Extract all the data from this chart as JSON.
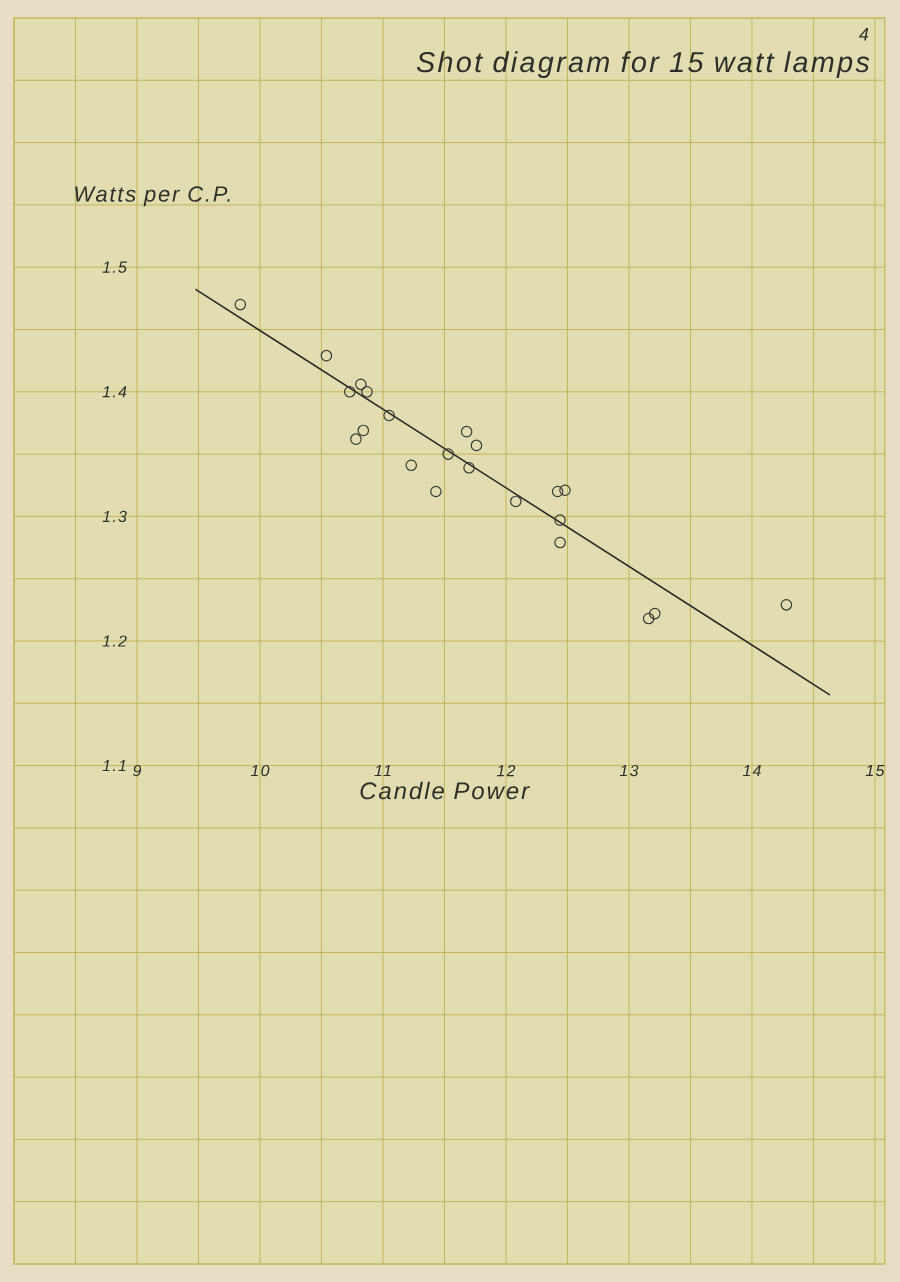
{
  "chart_data": {
    "type": "scatter",
    "title": "Shot diagram for 15 watt lamps",
    "xlabel": "Candle Power",
    "ylabel": "Watts per C.P.",
    "annotations": [
      "4"
    ],
    "xlim": [
      8,
      15.08
    ],
    "ylim": [
      0.7,
      1.7
    ],
    "xticks": [
      {
        "value": 8,
        "label": null
      },
      {
        "value": 8.5,
        "label": null
      },
      9,
      {
        "value": 9.5,
        "label": null
      },
      10,
      {
        "value": 10.5,
        "label": null
      },
      11,
      {
        "value": 11.5,
        "label": null
      },
      12,
      {
        "value": 12.5,
        "label": null
      },
      13,
      {
        "value": 13.5,
        "label": null
      },
      14,
      {
        "value": 14.5,
        "label": null
      },
      15
    ],
    "yticks": [
      {
        "value": 0.7,
        "label": null
      },
      {
        "value": 0.75,
        "label": null
      },
      {
        "value": 0.8,
        "label": null
      },
      {
        "value": 0.85,
        "label": null
      },
      {
        "value": 0.9,
        "label": null
      },
      {
        "value": 0.95,
        "label": null
      },
      {
        "value": 1.0,
        "label": null
      },
      {
        "value": 1.05,
        "label": null
      },
      1.1,
      {
        "value": 1.15,
        "label": null
      },
      1.2,
      {
        "value": 1.25,
        "label": null
      },
      1.3,
      {
        "value": 1.35,
        "label": null
      },
      1.4,
      {
        "value": 1.45,
        "label": null
      },
      1.5,
      {
        "value": 1.55,
        "label": null
      },
      {
        "value": 1.6,
        "label": null
      },
      {
        "value": 1.65,
        "label": null
      },
      {
        "value": 1.7,
        "label": null
      }
    ],
    "grid": true,
    "marker": "circle",
    "series": [
      {
        "color": "#3a3a35",
        "x": [
          9.84,
          10.54,
          10.82,
          10.73,
          10.87,
          11.05,
          10.84,
          10.78,
          11.23,
          11.68,
          11.76,
          11.53,
          11.7,
          11.43,
          12.08,
          12.42,
          12.48,
          12.44,
          12.44,
          13.16,
          13.21,
          14.28
        ],
        "values": [
          1.47,
          1.429,
          1.406,
          1.4,
          1.4,
          1.381,
          1.369,
          1.362,
          1.341,
          1.368,
          1.357,
          1.35,
          1.339,
          1.32,
          1.312,
          1.32,
          1.321,
          1.297,
          1.279,
          1.218,
          1.222,
          1.229
        ]
      },
      {
        "type": "line",
        "marker": "none",
        "line_style": "solid",
        "color": "#2a2a2a",
        "x": [
          9.48,
          14.63
        ],
        "values": [
          1.482,
          1.157
        ]
      }
    ]
  }
}
